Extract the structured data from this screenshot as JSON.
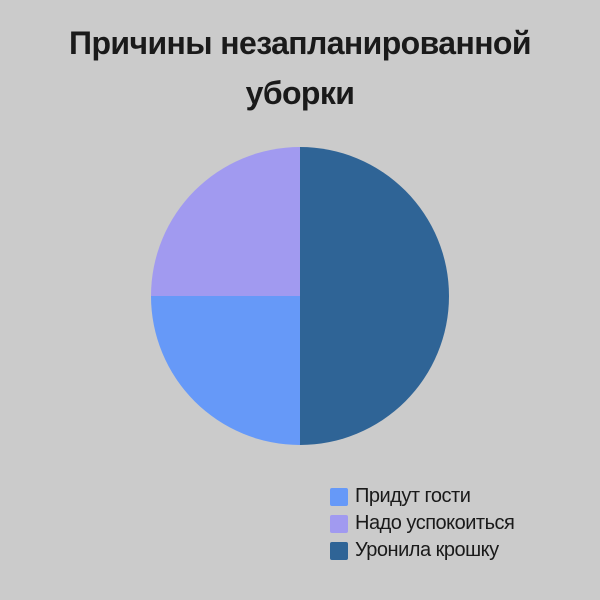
{
  "page": {
    "background_color": "#cbcbcb",
    "text_color": "#1a1a1a"
  },
  "chart_data": {
    "type": "pie",
    "title": "Причины незапланированной уборки",
    "slices": [
      {
        "label": "Придут гости",
        "value_percent": 25,
        "color": "#6699f8"
      },
      {
        "label": "Надо успокоиться",
        "value_percent": 25,
        "color": "#a19af0"
      },
      {
        "label": "Уронила крошку",
        "value_percent": 50,
        "color": "#2f6496"
      }
    ],
    "draw_order": [
      2,
      0,
      1
    ],
    "start_angle_deg": 0,
    "legend_position": "bottom-right",
    "grid": false
  }
}
